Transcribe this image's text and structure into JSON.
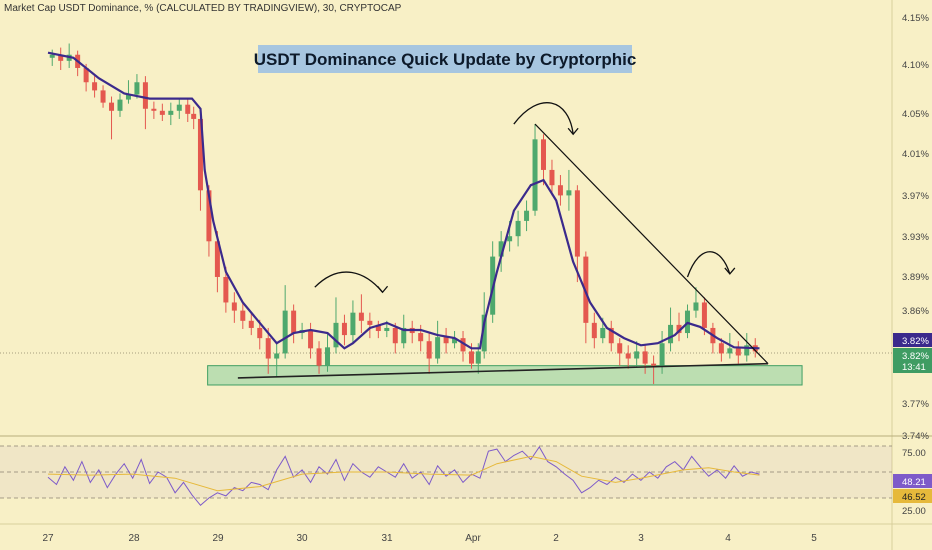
{
  "header": "Market Cap USDT Dominance, % (CALCULATED BY TRADINGVIEW), 30, CRYPTOCAP",
  "chart_data": {
    "type": "candlestick",
    "title": "USDT Dominance Quick Update by Cryptorphic",
    "price_axis": {
      "ticks": [
        "4.15%",
        "4.10%",
        "4.05%",
        "4.01%",
        "3.97%",
        "3.93%",
        "3.89%",
        "3.86%",
        "3.82%",
        "3.77%",
        "3.74%"
      ],
      "range": [
        3.74,
        4.15
      ]
    },
    "time_axis": {
      "ticks": [
        "27",
        "28",
        "29",
        "30",
        "31",
        "Apr",
        "2",
        "3",
        "4",
        "5"
      ]
    },
    "price_labels": {
      "ma": "3.82%",
      "last": "3.82%",
      "countdown": "13:41"
    },
    "moving_average": [
      [
        0.0,
        4.115
      ],
      [
        0.3,
        4.11
      ],
      [
        0.6,
        4.09
      ],
      [
        0.9,
        4.075
      ],
      [
        1.2,
        4.07
      ],
      [
        1.5,
        4.07
      ],
      [
        1.7,
        4.07
      ],
      [
        1.8,
        4.06
      ],
      [
        1.85,
        4.0
      ],
      [
        1.95,
        3.95
      ],
      [
        2.1,
        3.9
      ],
      [
        2.3,
        3.87
      ],
      [
        2.5,
        3.85
      ],
      [
        2.7,
        3.83
      ],
      [
        2.9,
        3.84
      ],
      [
        3.1,
        3.843
      ],
      [
        3.3,
        3.84
      ],
      [
        3.5,
        3.825
      ],
      [
        3.6,
        3.83
      ],
      [
        3.8,
        3.845
      ],
      [
        4.0,
        3.85
      ],
      [
        4.2,
        3.843
      ],
      [
        4.4,
        3.843
      ],
      [
        4.6,
        3.838
      ],
      [
        4.8,
        3.835
      ],
      [
        5.0,
        3.825
      ],
      [
        5.1,
        3.825
      ],
      [
        5.15,
        3.85
      ],
      [
        5.3,
        3.9
      ],
      [
        5.5,
        3.96
      ],
      [
        5.7,
        3.985
      ],
      [
        5.85,
        3.99
      ],
      [
        6.0,
        3.97
      ],
      [
        6.2,
        3.91
      ],
      [
        6.4,
        3.87
      ],
      [
        6.6,
        3.845
      ],
      [
        6.8,
        3.835
      ],
      [
        7.0,
        3.828
      ],
      [
        7.2,
        3.83
      ],
      [
        7.4,
        3.838
      ],
      [
        7.55,
        3.85
      ],
      [
        7.7,
        3.846
      ],
      [
        7.9,
        3.835
      ],
      [
        8.1,
        3.826
      ],
      [
        8.4,
        3.825
      ]
    ],
    "candles": [
      [
        0.05,
        4.11,
        4.113,
        4.118,
        4.102
      ],
      [
        0.15,
        4.113,
        4.107,
        4.12,
        4.098
      ],
      [
        0.25,
        4.107,
        4.113,
        4.124,
        4.1
      ],
      [
        0.35,
        4.113,
        4.1,
        4.117,
        4.092
      ],
      [
        0.45,
        4.1,
        4.086,
        4.104,
        4.077
      ],
      [
        0.55,
        4.086,
        4.078,
        4.092,
        4.071
      ],
      [
        0.65,
        4.078,
        4.066,
        4.083,
        4.061
      ],
      [
        0.75,
        4.066,
        4.058,
        4.072,
        4.03
      ],
      [
        0.85,
        4.058,
        4.069,
        4.075,
        4.052
      ],
      [
        0.95,
        4.069,
        4.074,
        4.088,
        4.065
      ],
      [
        1.05,
        4.074,
        4.086,
        4.094,
        4.07
      ],
      [
        1.15,
        4.086,
        4.06,
        4.092,
        4.04
      ],
      [
        1.25,
        4.06,
        4.058,
        4.067,
        4.05
      ],
      [
        1.35,
        4.058,
        4.054,
        4.065,
        4.048
      ],
      [
        1.45,
        4.054,
        4.058,
        4.066,
        4.044
      ],
      [
        1.55,
        4.058,
        4.064,
        4.07,
        4.05
      ],
      [
        1.65,
        4.064,
        4.055,
        4.07,
        4.047
      ],
      [
        1.72,
        4.055,
        4.05,
        4.062,
        4.04
      ],
      [
        1.8,
        4.05,
        3.98,
        4.052,
        3.96
      ],
      [
        1.9,
        3.98,
        3.93,
        3.985,
        3.915
      ],
      [
        2.0,
        3.93,
        3.895,
        3.94,
        3.88
      ],
      [
        2.1,
        3.895,
        3.87,
        3.905,
        3.86
      ],
      [
        2.2,
        3.87,
        3.862,
        3.88,
        3.85
      ],
      [
        2.3,
        3.862,
        3.852,
        3.87,
        3.844
      ],
      [
        2.4,
        3.852,
        3.845,
        3.86,
        3.838
      ],
      [
        2.5,
        3.845,
        3.835,
        3.853,
        3.824
      ],
      [
        2.6,
        3.835,
        3.815,
        3.845,
        3.8
      ],
      [
        2.7,
        3.815,
        3.82,
        3.83,
        3.797
      ],
      [
        2.8,
        3.82,
        3.862,
        3.887,
        3.815
      ],
      [
        2.9,
        3.862,
        3.84,
        3.868,
        3.83
      ],
      [
        3.0,
        3.84,
        3.843,
        3.85,
        3.834
      ],
      [
        3.1,
        3.843,
        3.825,
        3.85,
        3.815
      ],
      [
        3.2,
        3.825,
        3.808,
        3.832,
        3.8
      ],
      [
        3.3,
        3.808,
        3.826,
        3.84,
        3.802
      ],
      [
        3.4,
        3.826,
        3.85,
        3.875,
        3.82
      ],
      [
        3.5,
        3.85,
        3.838,
        3.858,
        3.828
      ],
      [
        3.6,
        3.838,
        3.86,
        3.872,
        3.83
      ],
      [
        3.7,
        3.86,
        3.852,
        3.878,
        3.84
      ],
      [
        3.8,
        3.852,
        3.848,
        3.86,
        3.835
      ],
      [
        3.9,
        3.848,
        3.842,
        3.852,
        3.835
      ],
      [
        4.0,
        3.842,
        3.845,
        3.852,
        3.836
      ],
      [
        4.1,
        3.845,
        3.83,
        3.85,
        3.82
      ],
      [
        4.2,
        3.83,
        3.845,
        3.858,
        3.825
      ],
      [
        4.3,
        3.845,
        3.84,
        3.852,
        3.83
      ],
      [
        4.4,
        3.84,
        3.832,
        3.848,
        3.822
      ],
      [
        4.5,
        3.832,
        3.815,
        3.84,
        3.8
      ],
      [
        4.6,
        3.815,
        3.836,
        3.852,
        3.81
      ],
      [
        4.7,
        3.836,
        3.83,
        3.845,
        3.82
      ],
      [
        4.8,
        3.83,
        3.835,
        3.842,
        3.825
      ],
      [
        4.9,
        3.835,
        3.822,
        3.842,
        3.812
      ],
      [
        5.0,
        3.822,
        3.81,
        3.83,
        3.805
      ],
      [
        5.08,
        3.81,
        3.822,
        3.83,
        3.8
      ],
      [
        5.15,
        3.822,
        3.858,
        3.88,
        3.815
      ],
      [
        5.25,
        3.858,
        3.915,
        3.93,
        3.85
      ],
      [
        5.35,
        3.915,
        3.93,
        3.94,
        3.9
      ],
      [
        5.45,
        3.93,
        3.935,
        3.95,
        3.92
      ],
      [
        5.55,
        3.935,
        3.95,
        3.96,
        3.925
      ],
      [
        5.65,
        3.95,
        3.96,
        3.97,
        3.94
      ],
      [
        5.75,
        3.96,
        4.03,
        4.045,
        3.955
      ],
      [
        5.85,
        4.03,
        4.0,
        4.035,
        3.985
      ],
      [
        5.95,
        4.0,
        3.985,
        4.01,
        3.975
      ],
      [
        6.05,
        3.985,
        3.975,
        3.995,
        3.965
      ],
      [
        6.15,
        3.975,
        3.98,
        4.0,
        3.96
      ],
      [
        6.25,
        3.98,
        3.915,
        3.985,
        3.89
      ],
      [
        6.35,
        3.915,
        3.85,
        3.92,
        3.83
      ],
      [
        6.45,
        3.85,
        3.835,
        3.86,
        3.825
      ],
      [
        6.55,
        3.835,
        3.845,
        3.855,
        3.83
      ],
      [
        6.65,
        3.845,
        3.83,
        3.852,
        3.822
      ],
      [
        6.75,
        3.83,
        3.82,
        3.835,
        3.808
      ],
      [
        6.85,
        3.82,
        3.815,
        3.828,
        3.805
      ],
      [
        6.95,
        3.815,
        3.822,
        3.832,
        3.806
      ],
      [
        7.05,
        3.822,
        3.81,
        3.828,
        3.8
      ],
      [
        7.15,
        3.81,
        3.808,
        3.818,
        3.79
      ],
      [
        7.25,
        3.808,
        3.83,
        3.842,
        3.8
      ],
      [
        7.35,
        3.83,
        3.848,
        3.865,
        3.822
      ],
      [
        7.45,
        3.848,
        3.84,
        3.86,
        3.832
      ],
      [
        7.55,
        3.84,
        3.862,
        3.868,
        3.835
      ],
      [
        7.65,
        3.862,
        3.87,
        3.885,
        3.855
      ],
      [
        7.75,
        3.87,
        3.845,
        3.875,
        3.838
      ],
      [
        7.85,
        3.845,
        3.83,
        3.85,
        3.82
      ],
      [
        7.95,
        3.83,
        3.82,
        3.835,
        3.812
      ],
      [
        8.05,
        3.82,
        3.825,
        3.84,
        3.815
      ],
      [
        8.15,
        3.825,
        3.818,
        3.832,
        3.81
      ],
      [
        8.25,
        3.818,
        3.828,
        3.84,
        3.812
      ],
      [
        8.35,
        3.828,
        3.822,
        3.835,
        3.816
      ]
    ],
    "annotations": {
      "descending_trendline": [
        [
          5.75,
          4.045
        ],
        [
          8.95,
          3.808
        ]
      ],
      "support_trendline": [
        [
          2.1,
          3.796
        ],
        [
          8.95,
          3.808
        ]
      ],
      "support_zone": [
        2.05,
        8.95,
        3.792,
        3.808
      ],
      "curved_arrows": [
        [
          [
            3.15,
            3.885
          ],
          [
            3.45,
            3.91
          ],
          [
            3.75,
            3.9
          ],
          [
            3.95,
            3.88
          ]
        ],
        [
          [
            5.5,
            4.045
          ],
          [
            5.8,
            4.078
          ],
          [
            6.15,
            4.07
          ],
          [
            6.2,
            4.035
          ]
        ],
        [
          [
            7.55,
            3.895
          ],
          [
            7.7,
            3.93
          ],
          [
            7.95,
            3.925
          ],
          [
            8.05,
            3.898
          ]
        ]
      ]
    },
    "rsi": {
      "ticks": [
        "75.00",
        "25.00"
      ],
      "labels": {
        "rsi": "48.21",
        "ma": "46.52"
      },
      "upper_band": 75,
      "mid_band": 50,
      "lower_band": 25,
      "values": [
        [
          0.0,
          45
        ],
        [
          0.1,
          38
        ],
        [
          0.2,
          55
        ],
        [
          0.3,
          42
        ],
        [
          0.4,
          60
        ],
        [
          0.5,
          40
        ],
        [
          0.6,
          52
        ],
        [
          0.7,
          35
        ],
        [
          0.8,
          48
        ],
        [
          0.9,
          58
        ],
        [
          1.0,
          44
        ],
        [
          1.1,
          62
        ],
        [
          1.2,
          39
        ],
        [
          1.3,
          50
        ],
        [
          1.4,
          45
        ],
        [
          1.5,
          30
        ],
        [
          1.6,
          40
        ],
        [
          1.7,
          28
        ],
        [
          1.8,
          18
        ],
        [
          1.9,
          25
        ],
        [
          2.0,
          30
        ],
        [
          2.1,
          27
        ],
        [
          2.2,
          35
        ],
        [
          2.3,
          32
        ],
        [
          2.4,
          40
        ],
        [
          2.5,
          38
        ],
        [
          2.6,
          33
        ],
        [
          2.7,
          52
        ],
        [
          2.8,
          65
        ],
        [
          2.9,
          45
        ],
        [
          3.0,
          52
        ],
        [
          3.1,
          40
        ],
        [
          3.2,
          55
        ],
        [
          3.3,
          48
        ],
        [
          3.4,
          62
        ],
        [
          3.5,
          42
        ],
        [
          3.6,
          58
        ],
        [
          3.7,
          50
        ],
        [
          3.8,
          45
        ],
        [
          3.9,
          55
        ],
        [
          4.0,
          50
        ],
        [
          4.1,
          45
        ],
        [
          4.2,
          58
        ],
        [
          4.3,
          44
        ],
        [
          4.4,
          50
        ],
        [
          4.5,
          38
        ],
        [
          4.6,
          56
        ],
        [
          4.7,
          46
        ],
        [
          4.8,
          52
        ],
        [
          4.9,
          40
        ],
        [
          5.0,
          48
        ],
        [
          5.1,
          44
        ],
        [
          5.2,
          70
        ],
        [
          5.3,
          72
        ],
        [
          5.4,
          60
        ],
        [
          5.5,
          66
        ],
        [
          5.6,
          70
        ],
        [
          5.7,
          62
        ],
        [
          5.8,
          74
        ],
        [
          5.9,
          60
        ],
        [
          6.0,
          55
        ],
        [
          6.1,
          48
        ],
        [
          6.2,
          42
        ],
        [
          6.3,
          30
        ],
        [
          6.4,
          35
        ],
        [
          6.5,
          42
        ],
        [
          6.6,
          38
        ],
        [
          6.7,
          45
        ],
        [
          6.8,
          40
        ],
        [
          6.9,
          48
        ],
        [
          7.0,
          42
        ],
        [
          7.1,
          50
        ],
        [
          7.2,
          44
        ],
        [
          7.3,
          55
        ],
        [
          7.4,
          60
        ],
        [
          7.5,
          52
        ],
        [
          7.6,
          65
        ],
        [
          7.7,
          55
        ],
        [
          7.8,
          46
        ],
        [
          7.9,
          52
        ],
        [
          8.0,
          44
        ],
        [
          8.1,
          56
        ],
        [
          8.2,
          46
        ],
        [
          8.3,
          50
        ],
        [
          8.4,
          48
        ]
      ],
      "ma_values": [
        [
          0.0,
          48
        ],
        [
          0.5,
          47
        ],
        [
          1.0,
          48
        ],
        [
          1.5,
          44
        ],
        [
          2.0,
          32
        ],
        [
          2.5,
          36
        ],
        [
          3.0,
          48
        ],
        [
          3.5,
          50
        ],
        [
          4.0,
          50
        ],
        [
          4.5,
          48
        ],
        [
          5.0,
          47
        ],
        [
          5.3,
          58
        ],
        [
          5.7,
          65
        ],
        [
          6.0,
          60
        ],
        [
          6.3,
          46
        ],
        [
          6.7,
          40
        ],
        [
          7.0,
          44
        ],
        [
          7.5,
          52
        ],
        [
          7.8,
          54
        ],
        [
          8.1,
          50
        ],
        [
          8.4,
          47
        ]
      ]
    }
  }
}
